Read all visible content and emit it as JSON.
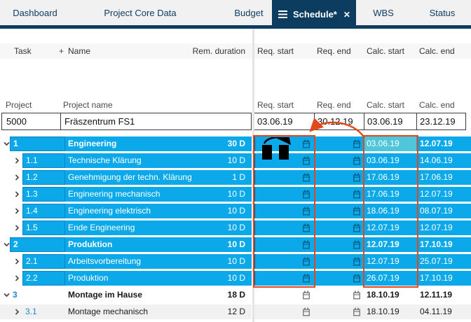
{
  "tabs": {
    "items": [
      {
        "label": "Dashboard",
        "active": false
      },
      {
        "label": "Project Core Data",
        "active": false
      },
      {
        "label": "Budget",
        "active": false
      },
      {
        "label": "Schedule*",
        "active": true
      },
      {
        "label": "WBS",
        "active": false
      },
      {
        "label": "Status",
        "active": false
      }
    ]
  },
  "table": {
    "columns": {
      "task": "Task",
      "add": "+",
      "name": "Name",
      "rem_duration": "Rem. duration",
      "req_start": "Req. start",
      "req_end": "Req. end",
      "calc_start": "Calc. start",
      "calc_end": "Calc. end"
    },
    "project_header": {
      "project": "Project",
      "project_name": "Project name",
      "req_start": "Req. start",
      "req_end": "Req. end",
      "calc_start": "Calc. start",
      "calc_end": "Calc. end"
    },
    "project_row": {
      "id": "5000",
      "name": "Fräszentrum FS1",
      "req_start": "03.06.19",
      "req_end": "30.12.19",
      "calc_start": "03.06.19",
      "calc_end": "23.12.19"
    },
    "tasks": [
      {
        "id": "1",
        "name": "Engineering",
        "duration": "30 D",
        "level": 1,
        "expanded": true,
        "selected": true,
        "bold": true,
        "calc_start": "03.06.19",
        "calc_end": "12.07.19",
        "calc_start_highlight": true,
        "drag_cursor": true
      },
      {
        "id": "1.1",
        "name": "Technische Klärung",
        "duration": "10 D",
        "level": 2,
        "expanded": false,
        "selected": true,
        "bold": false,
        "calc_start": "03.06.19",
        "calc_end": "14.06.19"
      },
      {
        "id": "1.2",
        "name": "Genehmigung der techn. Klärung",
        "duration": "1 D",
        "level": 2,
        "expanded": false,
        "selected": true,
        "bold": false,
        "calc_start": "17.06.19",
        "calc_end": "17.06.19"
      },
      {
        "id": "1.3",
        "name": "Engineering mechanisch",
        "duration": "10 D",
        "level": 2,
        "expanded": false,
        "selected": true,
        "bold": false,
        "calc_start": "17.06.19",
        "calc_end": "12.07.19"
      },
      {
        "id": "1.4",
        "name": "Engineering elektrisch",
        "duration": "10 D",
        "level": 2,
        "expanded": false,
        "selected": true,
        "bold": false,
        "calc_start": "18.06.19",
        "calc_end": "08.07.19"
      },
      {
        "id": "1.5",
        "name": "Ende Engineering",
        "duration": "10 D",
        "level": 2,
        "expanded": false,
        "selected": true,
        "bold": false,
        "calc_start": "12.07.19",
        "calc_end": "12.07.19"
      },
      {
        "id": "2",
        "name": "Produktion",
        "duration": "10 D",
        "level": 1,
        "expanded": true,
        "selected": true,
        "bold": true,
        "calc_start": "12.07.19",
        "calc_end": "17.10.19"
      },
      {
        "id": "2.1",
        "name": "Arbeitsvorbereitung",
        "duration": "10 D",
        "level": 2,
        "expanded": false,
        "selected": true,
        "bold": false,
        "calc_start": "12.07.19",
        "calc_end": "25.07.19"
      },
      {
        "id": "2.2",
        "name": "Produktion",
        "duration": "10 D",
        "level": 2,
        "expanded": false,
        "selected": true,
        "bold": false,
        "calc_start": "26.07.19",
        "calc_end": "17.10.19"
      },
      {
        "id": "3",
        "name": "Montage im Hause",
        "duration": "18 D",
        "level": 1,
        "expanded": true,
        "selected": false,
        "bold": true,
        "calc_start": "18.10.19",
        "calc_end": "12.11.19"
      },
      {
        "id": "3.1",
        "name": "Montage mechanisch",
        "duration": "12 D",
        "level": 2,
        "expanded": false,
        "selected": false,
        "bold": false,
        "alt": true,
        "calc_start": "18.10.19",
        "calc_end": "04.11.19"
      }
    ]
  },
  "annotations": {
    "color": "#e3481c",
    "boxes": [
      "req-start-column",
      "calc-start-column"
    ],
    "arrow": {
      "from": "calc-start-column",
      "to": "req-start-column"
    }
  },
  "colors": {
    "selection_cyan": "#0ba9e9",
    "highlight_teal": "#4fc6da",
    "tab_navy": "#0d3c61",
    "annotation_red": "#e3481c",
    "link_blue": "#2386c8",
    "alt_row_gray": "#f1f1f2"
  }
}
